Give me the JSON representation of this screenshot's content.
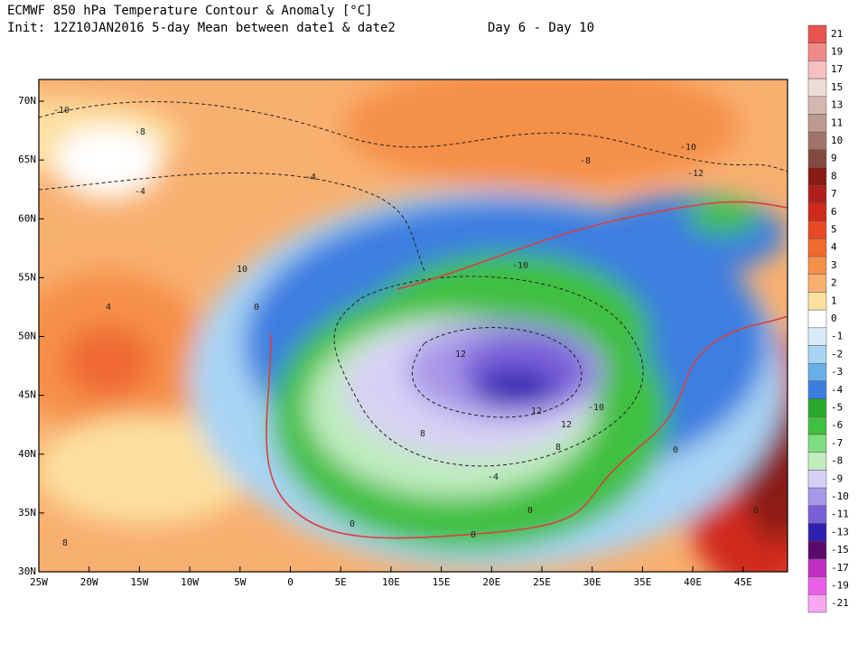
{
  "header": {
    "line1": "ECMWF 850 hPa Temperature Contour & Anomaly [°C]",
    "line2": "Init: 12Z10JAN2016 5-day Mean between date1 & date2",
    "period": "Day 6 - Day 10"
  },
  "map": {
    "lat_labels": [
      "70N",
      "65N",
      "60N",
      "55N",
      "50N",
      "45N",
      "40N",
      "35N",
      "30N"
    ],
    "lon_labels": [
      "25W",
      "20W",
      "15W",
      "10W",
      "5W",
      "0",
      "5E",
      "10E",
      "15E",
      "20E",
      "25E",
      "30E",
      "35E",
      "40E",
      "45E"
    ],
    "contour_labels": [
      "-10",
      "-8",
      "-4",
      "-4",
      "4",
      "10",
      "0",
      "-10",
      "12",
      "12",
      "12",
      "-10",
      "-8",
      "-10",
      "-12",
      "8",
      "8",
      "-4",
      "0",
      "0",
      "0",
      "0",
      "8",
      "8"
    ]
  },
  "colorbar": {
    "labels": [
      21,
      19,
      17,
      15,
      13,
      11,
      10,
      9,
      8,
      7,
      6,
      5,
      4,
      3,
      2,
      1,
      0,
      -1,
      -2,
      -3,
      -4,
      -5,
      -6,
      -7,
      -8,
      -9,
      -10,
      -11,
      -13,
      -15,
      -17,
      -19,
      -21
    ],
    "colors": [
      "#e8524f",
      "#f08a88",
      "#f6c0c0",
      "#ecdcd8",
      "#d4b8b0",
      "#bc9a90",
      "#a07468",
      "#844a40",
      "#8a1a14",
      "#b0201a",
      "#d02a1c",
      "#e84a26",
      "#f06a30",
      "#f5904a",
      "#f8b070",
      "#fce0a0",
      "#ffffff",
      "#d8ecf8",
      "#a8d4f4",
      "#6aaee8",
      "#3c7ee0",
      "#2ca82c",
      "#40c040",
      "#80dc80",
      "#c0ecc0",
      "#d8d0f4",
      "#a898e8",
      "#7860d8",
      "#3020b0",
      "#5a0a6a",
      "#c030c0",
      "#e860e8",
      "#f8a8f0"
    ]
  }
}
